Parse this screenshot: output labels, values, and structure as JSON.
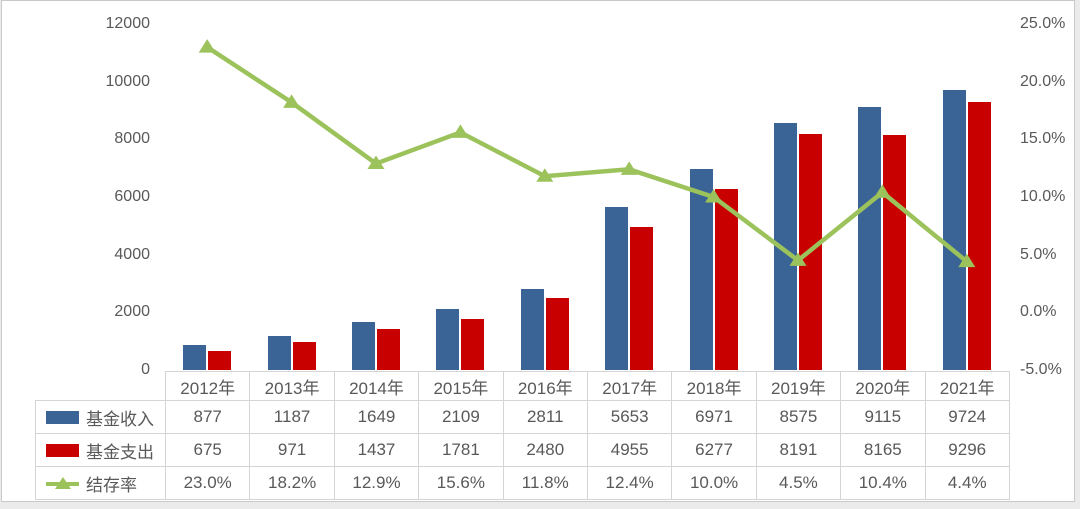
{
  "chart_data": {
    "type": "bar",
    "subtype": "combo-bar-line-with-data-table",
    "title": "",
    "categories": [
      "2012年",
      "2013年",
      "2014年",
      "2015年",
      "2016年",
      "2017年",
      "2018年",
      "2019年",
      "2020年",
      "2021年"
    ],
    "series": [
      {
        "name": "基金收入",
        "chart": "bar",
        "color": "#3a6496",
        "axis": "left",
        "values": [
          877,
          1187,
          1649,
          2109,
          2811,
          5653,
          6971,
          8575,
          9115,
          9724
        ]
      },
      {
        "name": "基金支出",
        "chart": "bar",
        "color": "#c80000",
        "axis": "left",
        "values": [
          675,
          971,
          1437,
          1781,
          2480,
          4955,
          6277,
          8191,
          8165,
          9296
        ]
      },
      {
        "name": "结存率",
        "chart": "line",
        "color": "#9cc25b",
        "axis": "right",
        "marker": "triangle-up",
        "values": [
          23.0,
          18.2,
          12.9,
          15.6,
          11.8,
          12.4,
          10.0,
          4.5,
          10.4,
          4.4
        ],
        "labels": [
          "23.0%",
          "18.2%",
          "12.9%",
          "15.6%",
          "11.8%",
          "12.4%",
          "10.0%",
          "4.5%",
          "10.4%",
          "4.4%"
        ]
      }
    ],
    "left_axis": {
      "min": 0,
      "max": 12000,
      "ticks": [
        "12000",
        "10000",
        "8000",
        "6000",
        "4000",
        "2000",
        "0"
      ]
    },
    "right_axis": {
      "min": -5,
      "max": 25,
      "ticks": [
        "25.0%",
        "20.0%",
        "15.0%",
        "10.0%",
        "5.0%",
        "0.0%",
        "-5.0%"
      ]
    },
    "grid": false,
    "legend_position": "data-table-left",
    "colors": {
      "income_bar": "#3a6496",
      "expense_bar": "#c80000",
      "rate_line": "#9cc25b",
      "axis_text": "#595959",
      "table_border": "#d4d4d4",
      "frame_border": "#c9c9c9"
    }
  }
}
